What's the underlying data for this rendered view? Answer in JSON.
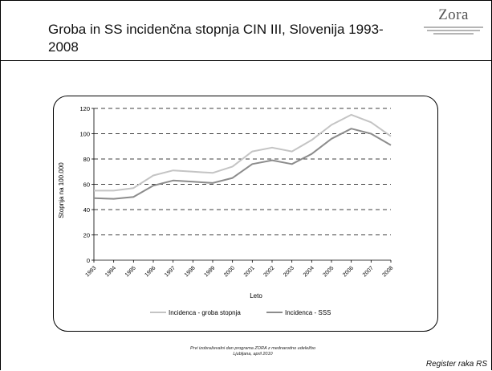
{
  "slide": {
    "title": "Groba in SS incidenčna stopnja CIN III, Slovenija 1993-2008",
    "logo_text": "Zora",
    "footer_line1": "Prvi izobraževalni dan programa ZORA z mednarodno udeležbo",
    "footer_line2": "Ljubljana, april 2010",
    "register": "Register raka RS"
  },
  "chart_data": {
    "type": "line",
    "title": "",
    "xlabel": "Leto",
    "ylabel": "Stopnja na 100.000",
    "ylim": [
      0,
      120
    ],
    "yticks": [
      0,
      20,
      40,
      60,
      80,
      100,
      120
    ],
    "grid": "horizontal dashed",
    "legend_position": "bottom",
    "categories": [
      "1993",
      "1994",
      "1995",
      "1996",
      "1997",
      "1998",
      "1999",
      "2000",
      "2001",
      "2002",
      "2003",
      "2004",
      "2005",
      "2006",
      "2007",
      "2008"
    ],
    "series": [
      {
        "name": "Incidenca - groba stopnja",
        "color": "#c4c4c4",
        "values": [
          55,
          55,
          57,
          67,
          71,
          70,
          69,
          74,
          86,
          89,
          86,
          95,
          107,
          115,
          109,
          98
        ]
      },
      {
        "name": "Incidenca - SSS",
        "color": "#8c8c8c",
        "values": [
          49,
          48.5,
          50,
          59,
          63,
          62,
          61,
          65,
          76,
          79,
          76,
          84,
          96,
          104,
          100,
          91
        ]
      }
    ]
  }
}
